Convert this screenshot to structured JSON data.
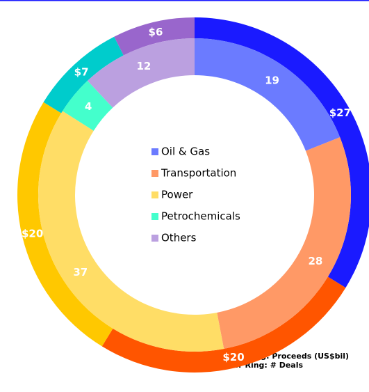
{
  "chart_data": {
    "type": "donut",
    "categories": [
      "Oil & Gas",
      "Transportation",
      "Power",
      "Petrochemicals",
      "Others"
    ],
    "legend_colors": [
      "#6b7bff",
      "#ff9966",
      "#ffdd66",
      "#44ffcc",
      "#bba0e0"
    ],
    "rings": [
      {
        "label": "Outer Ring: Proceeds (US$bil)",
        "values": [
          27,
          20,
          20,
          7,
          6
        ],
        "value_labels": [
          "$27",
          "$20",
          "$20",
          "$7",
          "$6"
        ],
        "colors": [
          "#1a1aff",
          "#ff5500",
          "#ffc800",
          "#00cccc",
          "#9966cc"
        ]
      },
      {
        "label": "Inner Ring: # Deals",
        "values": [
          19,
          28,
          37,
          4,
          12
        ],
        "colors": [
          "#6b7bff",
          "#ff9966",
          "#ffdd66",
          "#44ffcc",
          "#bba0e0"
        ]
      }
    ]
  }
}
